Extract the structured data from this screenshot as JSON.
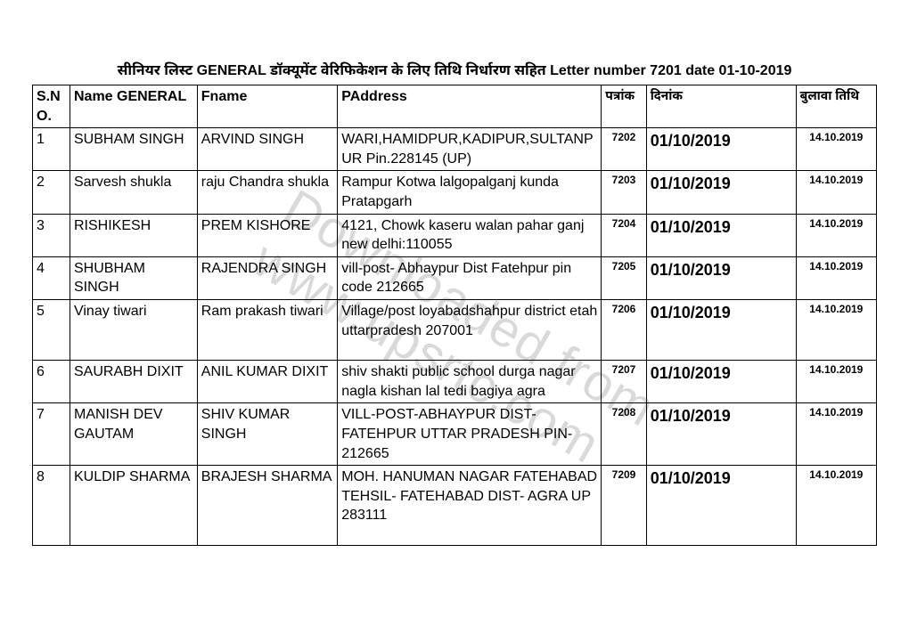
{
  "title": "सीनियर लिस्ट GENERAL डॉक्यूमेंट वेरिफिकेशन के लिए तिथि निर्धारण सहित Letter number 7201 date 01-10-2019",
  "watermark": {
    "line1": "Downloaded from",
    "line2": "www.upsrtc.com"
  },
  "columns": {
    "sno": "S.NO.",
    "name": "Name GENERAL",
    "fname": "Fname",
    "address": "PAddress",
    "patrank": "पत्रांक",
    "dinank": "दिनांक",
    "bulawa": "बुलावा तिथि"
  },
  "rows": [
    {
      "sno": "1",
      "name": "SUBHAM SINGH",
      "fname": "ARVIND SINGH",
      "address": "WARI,HAMIDPUR,KADIPUR,SULTANPUR Pin.228145 (UP)",
      "patrank": "7202",
      "dinank": "01/10/2019",
      "bulawa": "14.10.2019"
    },
    {
      "sno": "2",
      "name": "Sarvesh shukla",
      "fname": "raju Chandra shukla",
      "address": "Rampur Kotwa lalgopalganj kunda Pratapgarh",
      "patrank": "7203",
      "dinank": "01/10/2019",
      "bulawa": "14.10.2019"
    },
    {
      "sno": "3",
      "name": "RISHIKESH",
      "fname": "PREM KISHORE",
      "address": "4121, Chowk kaseru walan pahar ganj new delhi:110055",
      "patrank": "7204",
      "dinank": "01/10/2019",
      "bulawa": "14.10.2019"
    },
    {
      "sno": "4",
      "name": "SHUBHAM SINGH",
      "fname": "RAJENDRA SINGH",
      "address": "vill-post- Abhaypur Dist Fatehpur pin code 212665",
      "patrank": "7205",
      "dinank": "01/10/2019",
      "bulawa": "14.10.2019"
    },
    {
      "sno": "5",
      "name": "Vinay tiwari",
      "fname": "Ram prakash tiwari",
      "address": "Village/post loyabadshahpur district etah uttarpradesh 207001",
      "patrank": "7206",
      "dinank": "01/10/2019",
      "bulawa": "14.10.2019",
      "tall": true
    },
    {
      "sno": "6",
      "name": "SAURABH DIXIT",
      "fname": "ANIL KUMAR DIXIT",
      "address": "shiv shakti public school durga nagar nagla kishan lal tedi bagiya agra",
      "patrank": "7207",
      "dinank": "01/10/2019",
      "bulawa": "14.10.2019"
    },
    {
      "sno": "7",
      "name": "MANISH DEV GAUTAM",
      "fname": "SHIV KUMAR SINGH",
      "address": "VILL-POST-ABHAYPUR DIST- FATEHPUR UTTAR PRADESH PIN-212665",
      "patrank": "7208",
      "dinank": "01/10/2019",
      "bulawa": "14.10.2019"
    },
    {
      "sno": "8",
      "name": "KULDIP SHARMA",
      "fname": "BRAJESH SHARMA",
      "address": "MOH. HANUMAN NAGAR FATEHABAD TEHSIL- FATEHABAD DIST- AGRA UP 283111",
      "patrank": "7209",
      "dinank": "01/10/2019",
      "bulawa": "14.10.2019",
      "tall": true
    }
  ]
}
